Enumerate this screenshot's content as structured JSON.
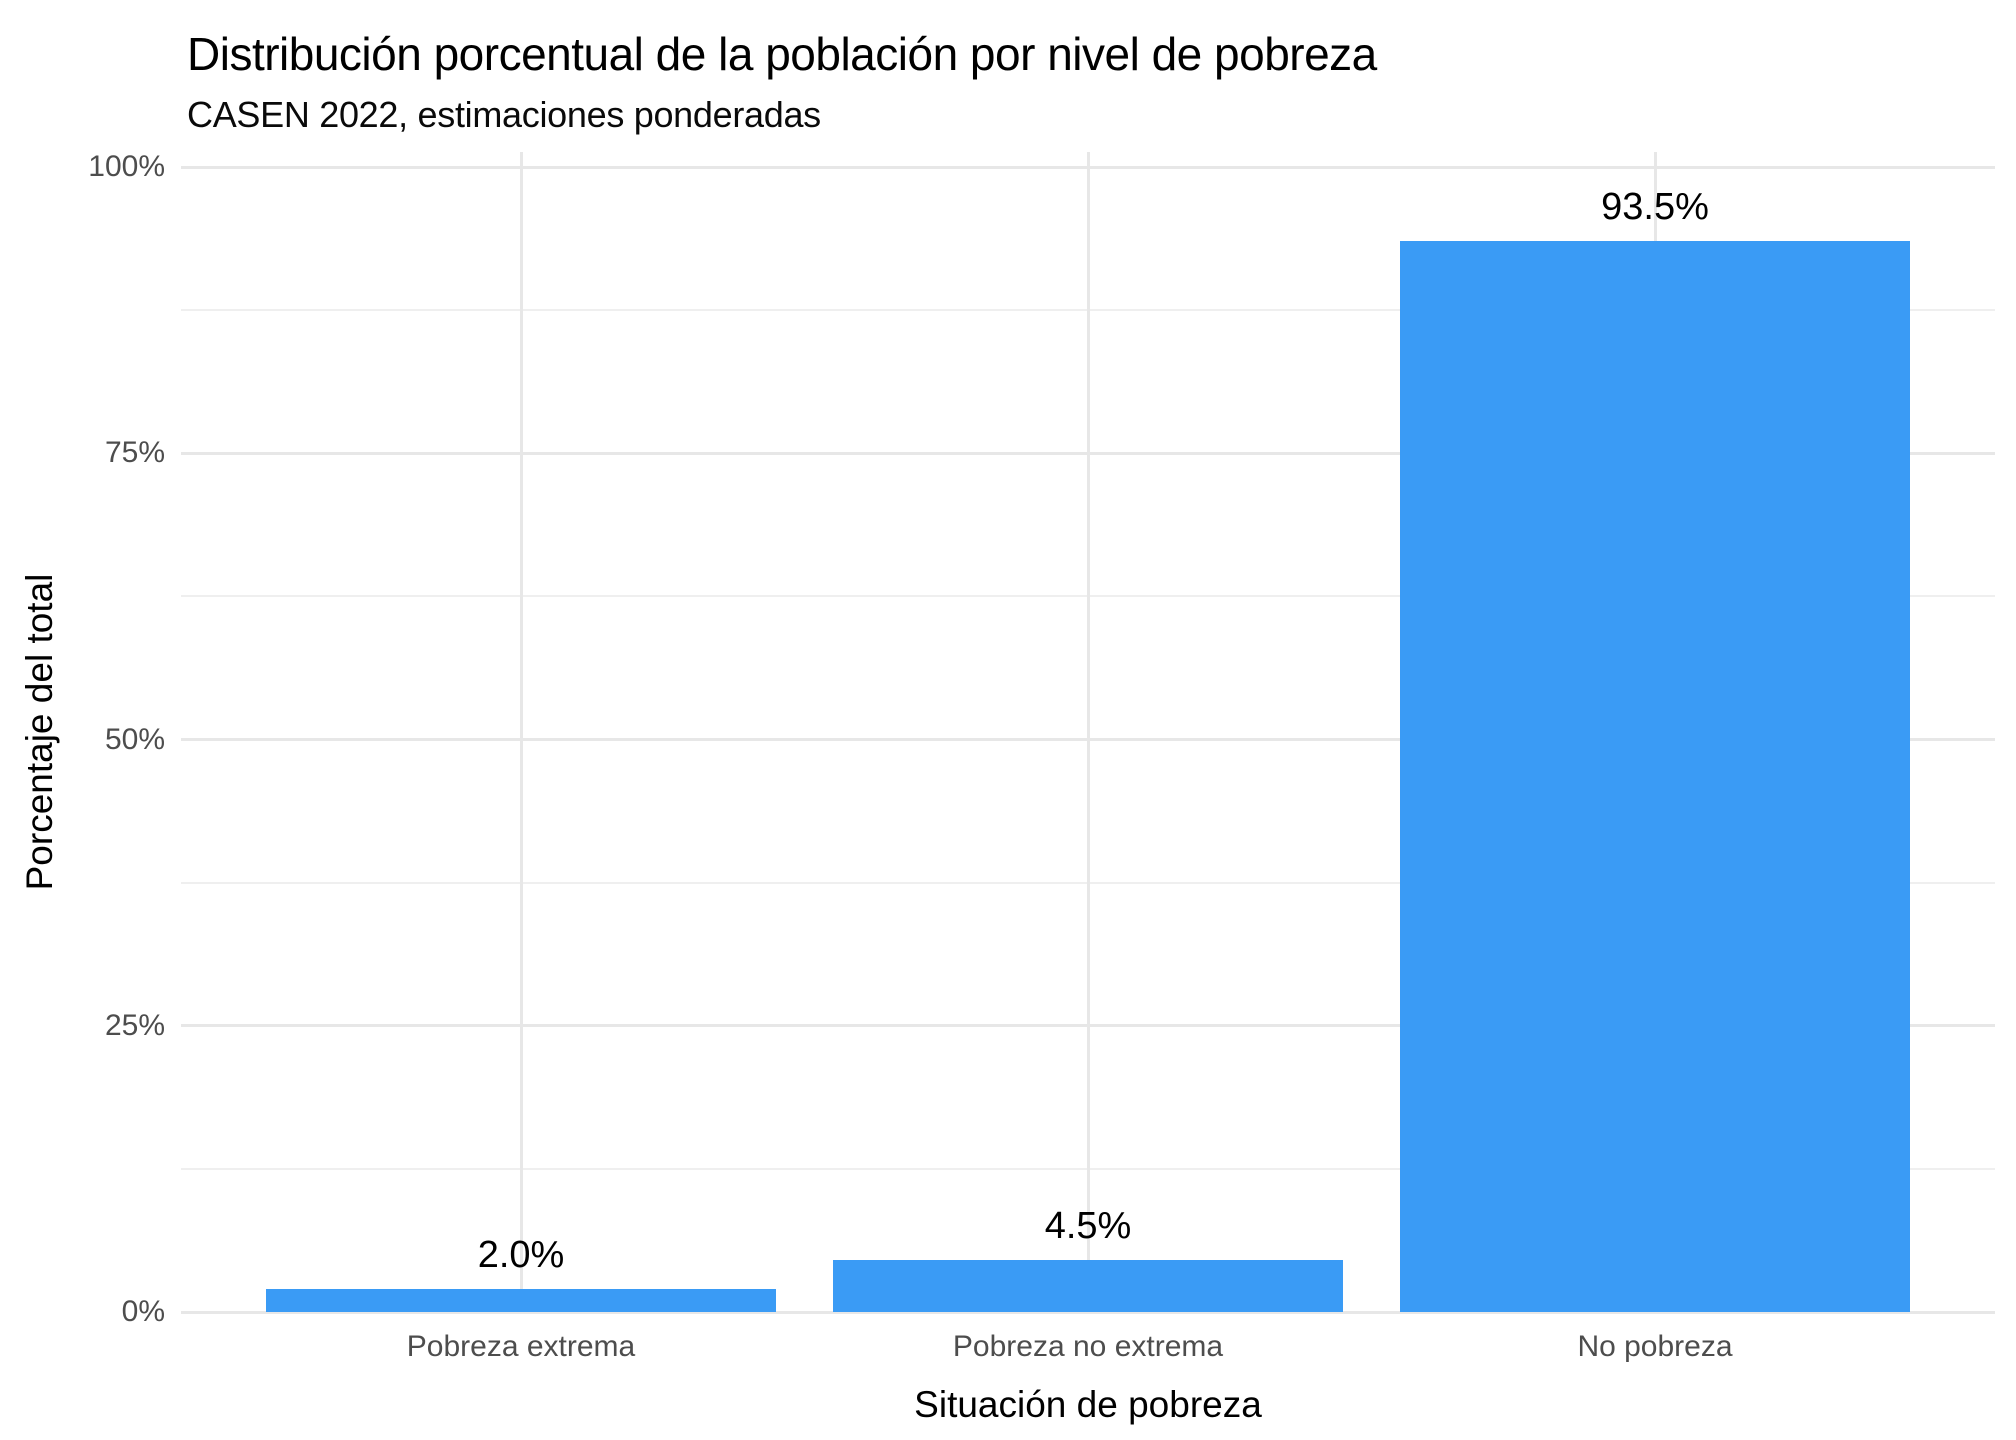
{
  "chart_data": {
    "type": "bar",
    "title": "Distribución porcentual de la población por nivel de pobreza",
    "subtitle": "CASEN 2022, estimaciones ponderadas",
    "xlabel": "Situación de pobreza",
    "ylabel": "Porcentaje del total",
    "categories": [
      "Pobreza extrema",
      "Pobreza no extrema",
      "No pobreza"
    ],
    "values": [
      2.0,
      4.5,
      93.5
    ],
    "bar_labels": [
      "2.0%",
      "4.5%",
      "93.5%"
    ],
    "y_ticks": [
      {
        "value": 0,
        "label": "0%"
      },
      {
        "value": 25,
        "label": "25%"
      },
      {
        "value": 50,
        "label": "50%"
      },
      {
        "value": 75,
        "label": "75%"
      },
      {
        "value": 100,
        "label": "100%"
      }
    ],
    "y_minor_ticks": [
      12.5,
      37.5,
      62.5,
      87.5
    ],
    "ylim": [
      0,
      100
    ],
    "legend": "none",
    "grid": {
      "horizontal_major": true,
      "horizontal_minor": true,
      "vertical_major_at_category_centers": true,
      "background": "white"
    }
  },
  "colors": {
    "bar_fill": "#3a9bf5",
    "grid_major": "#e7e7e7",
    "grid_minor": "#efefef",
    "tick_text": "#4d4d4d",
    "title_text": "#000000",
    "background": "#ffffff"
  }
}
